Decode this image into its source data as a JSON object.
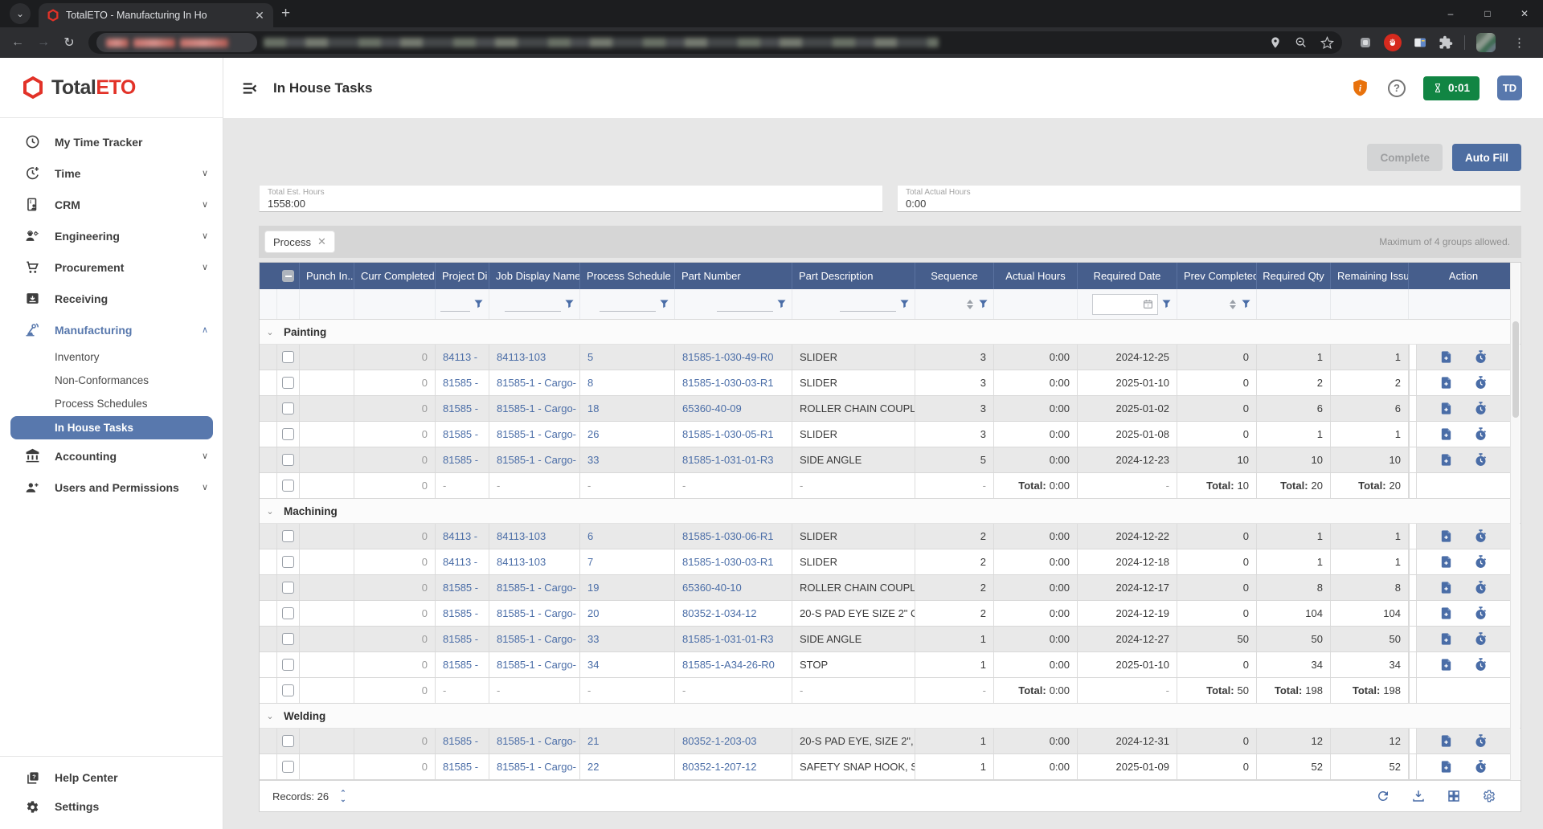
{
  "browser": {
    "tab_title": "TotalETO - Manufacturing In Ho"
  },
  "sidebar": {
    "logo": {
      "total": "Total",
      "eto": "ETO"
    },
    "items": [
      {
        "label": "My Time Tracker"
      },
      {
        "label": "Time"
      },
      {
        "label": "CRM"
      },
      {
        "label": "Engineering"
      },
      {
        "label": "Procurement"
      },
      {
        "label": "Receiving"
      },
      {
        "label": "Manufacturing"
      },
      {
        "label": "Accounting"
      },
      {
        "label": "Users and Permissions"
      }
    ],
    "manufacturing_children": [
      {
        "label": "Inventory"
      },
      {
        "label": "Non-Conformances"
      },
      {
        "label": "Process Schedules"
      },
      {
        "label": "In House Tasks",
        "selected": true
      }
    ],
    "footer_items": [
      {
        "label": "Help Center"
      },
      {
        "label": "Settings"
      }
    ]
  },
  "header": {
    "title": "In House Tasks",
    "timer": "0:01",
    "avatar_initials": "TD",
    "question_glyph": "?"
  },
  "actions": {
    "complete_label": "Complete",
    "autofill_label": "Auto Fill"
  },
  "summary": {
    "est_hours_label": "Total Est. Hours",
    "est_hours_value": "1558:00",
    "actual_hours_label": "Total Actual Hours",
    "actual_hours_value": "0:00"
  },
  "grouping": {
    "chip_label": "Process",
    "note": "Maximum of 4 groups allowed."
  },
  "table": {
    "columns": {
      "punch_in": "Punch In..",
      "curr_completed": "Curr Completed",
      "project": "Project Di",
      "job": "Job Display Name",
      "schedule": "Process Schedule",
      "part_number": "Part Number",
      "part_description": "Part Description",
      "sequence": "Sequence",
      "actual_hours": "Actual Hours",
      "required_date": "Required Date",
      "prev_completed": "Prev Completed",
      "required_qty": "Required Qty",
      "remaining": "Remaining Issu",
      "action": "Action"
    },
    "groups": [
      {
        "name": "Painting",
        "rows": [
          {
            "curr_completed": "0",
            "project": "84113 -",
            "job": "84113-103",
            "schedule": "5",
            "part_number": "81585-1-030-49-R0",
            "part_description": "SLIDER",
            "sequence": "3",
            "actual_hours": "0:00",
            "required_date": "2024-12-25",
            "prev_completed": "0",
            "required_qty": "1",
            "remaining": "1"
          },
          {
            "curr_completed": "0",
            "project": "81585 -",
            "job": "81585-1 - Cargo-",
            "schedule": "8",
            "part_number": "81585-1-030-03-R1",
            "part_description": "SLIDER",
            "sequence": "3",
            "actual_hours": "0:00",
            "required_date": "2025-01-10",
            "prev_completed": "0",
            "required_qty": "2",
            "remaining": "2"
          },
          {
            "curr_completed": "0",
            "project": "81585 -",
            "job": "81585-1 - Cargo-",
            "schedule": "18",
            "part_number": "65360-40-09",
            "part_description": "ROLLER CHAIN COUPL...",
            "sequence": "3",
            "actual_hours": "0:00",
            "required_date": "2025-01-02",
            "prev_completed": "0",
            "required_qty": "6",
            "remaining": "6"
          },
          {
            "curr_completed": "0",
            "project": "81585 -",
            "job": "81585-1 - Cargo-",
            "schedule": "26",
            "part_number": "81585-1-030-05-R1",
            "part_description": "SLIDER",
            "sequence": "3",
            "actual_hours": "0:00",
            "required_date": "2025-01-08",
            "prev_completed": "0",
            "required_qty": "1",
            "remaining": "1"
          },
          {
            "curr_completed": "0",
            "project": "81585 -",
            "job": "81585-1 - Cargo-",
            "schedule": "33",
            "part_number": "81585-1-031-01-R3",
            "part_description": "SIDE ANGLE",
            "sequence": "5",
            "actual_hours": "0:00",
            "required_date": "2024-12-23",
            "prev_completed": "10",
            "required_qty": "10",
            "remaining": "10"
          }
        ],
        "total": {
          "curr_completed": "0",
          "project": "-",
          "job": "-",
          "schedule": "-",
          "part_number": "-",
          "part_description": "-",
          "sequence": "-",
          "actual_hours": "Total: 0:00",
          "required_date": "-",
          "prev_completed": "Total: 10",
          "required_qty": "Total: 20",
          "remaining": "Total: 20"
        }
      },
      {
        "name": "Machining",
        "rows": [
          {
            "curr_completed": "0",
            "project": "84113 -",
            "job": "84113-103",
            "schedule": "6",
            "part_number": "81585-1-030-06-R1",
            "part_description": "SLIDER",
            "sequence": "2",
            "actual_hours": "0:00",
            "required_date": "2024-12-22",
            "prev_completed": "0",
            "required_qty": "1",
            "remaining": "1"
          },
          {
            "curr_completed": "0",
            "project": "84113 -",
            "job": "84113-103",
            "schedule": "7",
            "part_number": "81585-1-030-03-R1",
            "part_description": "SLIDER",
            "sequence": "2",
            "actual_hours": "0:00",
            "required_date": "2024-12-18",
            "prev_completed": "0",
            "required_qty": "1",
            "remaining": "1"
          },
          {
            "curr_completed": "0",
            "project": "81585 -",
            "job": "81585-1 - Cargo-",
            "schedule": "19",
            "part_number": "65360-40-10",
            "part_description": "ROLLER CHAIN COUPL...",
            "sequence": "2",
            "actual_hours": "0:00",
            "required_date": "2024-12-17",
            "prev_completed": "0",
            "required_qty": "8",
            "remaining": "8"
          },
          {
            "curr_completed": "0",
            "project": "81585 -",
            "job": "81585-1 - Cargo-",
            "schedule": "20",
            "part_number": "80352-1-034-12",
            "part_description": "20-S PAD EYE SIZE 2\" C...",
            "sequence": "2",
            "actual_hours": "0:00",
            "required_date": "2024-12-19",
            "prev_completed": "0",
            "required_qty": "104",
            "remaining": "104"
          },
          {
            "curr_completed": "0",
            "project": "81585 -",
            "job": "81585-1 - Cargo-",
            "schedule": "33",
            "part_number": "81585-1-031-01-R3",
            "part_description": "SIDE ANGLE",
            "sequence": "1",
            "actual_hours": "0:00",
            "required_date": "2024-12-27",
            "prev_completed": "50",
            "required_qty": "50",
            "remaining": "50"
          },
          {
            "curr_completed": "0",
            "project": "81585 -",
            "job": "81585-1 - Cargo-",
            "schedule": "34",
            "part_number": "81585-1-A34-26-R0",
            "part_description": "STOP",
            "sequence": "1",
            "actual_hours": "0:00",
            "required_date": "2025-01-10",
            "prev_completed": "0",
            "required_qty": "34",
            "remaining": "34"
          }
        ],
        "total": {
          "curr_completed": "0",
          "project": "-",
          "job": "-",
          "schedule": "-",
          "part_number": "-",
          "part_description": "-",
          "sequence": "-",
          "actual_hours": "Total: 0:00",
          "required_date": "-",
          "prev_completed": "Total: 50",
          "required_qty": "Total: 198",
          "remaining": "Total: 198"
        }
      },
      {
        "name": "Welding",
        "rows": [
          {
            "curr_completed": "0",
            "project": "81585 -",
            "job": "81585-1 - Cargo-",
            "schedule": "21",
            "part_number": "80352-1-203-03",
            "part_description": "20-S PAD EYE, SIZE 2\", ...",
            "sequence": "1",
            "actual_hours": "0:00",
            "required_date": "2024-12-31",
            "prev_completed": "0",
            "required_qty": "12",
            "remaining": "12"
          },
          {
            "curr_completed": "0",
            "project": "81585 -",
            "job": "81585-1 - Cargo-",
            "schedule": "22",
            "part_number": "80352-1-207-12",
            "part_description": "SAFETY SNAP HOOK, S...",
            "sequence": "1",
            "actual_hours": "0:00",
            "required_date": "2025-01-09",
            "prev_completed": "0",
            "required_qty": "52",
            "remaining": "52"
          }
        ]
      }
    ]
  },
  "footer": {
    "records_label": "Records: 26"
  },
  "colors": {
    "header_blue": "#465e8c",
    "link_blue": "#4a6da7",
    "selected_nav": "#5878ad",
    "timer_green": "#118543",
    "alert_orange": "#e8720c",
    "logo_red": "#e23228"
  }
}
